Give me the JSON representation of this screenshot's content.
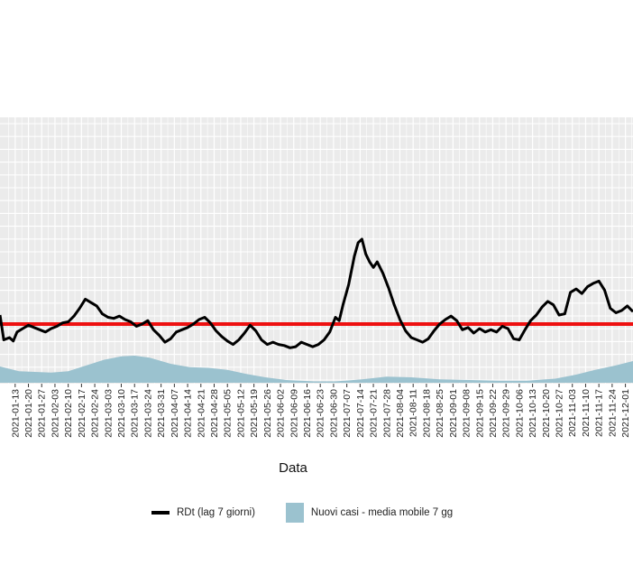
{
  "chart_data": {
    "type": "line",
    "title": "",
    "xlabel": "Data",
    "ylabel": "",
    "x_range": [
      "2021-01-05",
      "2021-12-05"
    ],
    "grid": true,
    "legend_position": "bottom",
    "tick_labels": [
      "2021-01-13",
      "2021-01-20",
      "2021-01-27",
      "2021-02-03",
      "2021-02-10",
      "2021-02-17",
      "2021-02-24",
      "2021-03-03",
      "2021-03-10",
      "2021-03-17",
      "2021-03-24",
      "2021-03-31",
      "2021-04-07",
      "2021-04-14",
      "2021-04-21",
      "2021-04-28",
      "2021-05-05",
      "2021-05-12",
      "2021-05-19",
      "2021-05-26",
      "2021-06-02",
      "2021-06-09",
      "2021-06-16",
      "2021-06-23",
      "2021-06-30",
      "2021-07-07",
      "2021-07-14",
      "2021-07-21",
      "2021-07-28",
      "2021-08-04",
      "2021-08-11",
      "2021-08-18",
      "2021-08-25",
      "2021-09-01",
      "2021-09-08",
      "2021-09-15",
      "2021-09-22",
      "2021-09-29",
      "2021-10-06",
      "2021-10-13",
      "2021-10-20",
      "2021-10-27",
      "2021-11-03",
      "2021-11-10",
      "2021-11-17",
      "2021-11-24",
      "2021-12-01"
    ],
    "threshold": {
      "value": 1.0,
      "color": "#ee1111"
    },
    "series": [
      {
        "name": "RDt (lag 7 giorni)",
        "kind": "line",
        "color": "#000000",
        "points": [
          [
            "2021-01-05",
            1.08
          ],
          [
            "2021-01-07",
            0.86
          ],
          [
            "2021-01-10",
            0.88
          ],
          [
            "2021-01-12",
            0.85
          ],
          [
            "2021-01-14",
            0.93
          ],
          [
            "2021-01-17",
            0.96
          ],
          [
            "2021-01-20",
            0.99
          ],
          [
            "2021-01-23",
            0.97
          ],
          [
            "2021-01-26",
            0.95
          ],
          [
            "2021-01-29",
            0.93
          ],
          [
            "2021-02-01",
            0.96
          ],
          [
            "2021-02-04",
            0.98
          ],
          [
            "2021-02-07",
            1.01
          ],
          [
            "2021-02-10",
            1.02
          ],
          [
            "2021-02-13",
            1.07
          ],
          [
            "2021-02-16",
            1.14
          ],
          [
            "2021-02-19",
            1.22
          ],
          [
            "2021-02-22",
            1.19
          ],
          [
            "2021-02-25",
            1.16
          ],
          [
            "2021-02-28",
            1.09
          ],
          [
            "2021-03-03",
            1.06
          ],
          [
            "2021-03-06",
            1.05
          ],
          [
            "2021-03-09",
            1.07
          ],
          [
            "2021-03-12",
            1.04
          ],
          [
            "2021-03-15",
            1.02
          ],
          [
            "2021-03-18",
            0.98
          ],
          [
            "2021-03-21",
            1.0
          ],
          [
            "2021-03-24",
            1.03
          ],
          [
            "2021-03-27",
            0.95
          ],
          [
            "2021-03-30",
            0.9
          ],
          [
            "2021-04-02",
            0.84
          ],
          [
            "2021-04-05",
            0.87
          ],
          [
            "2021-04-08",
            0.93
          ],
          [
            "2021-04-11",
            0.95
          ],
          [
            "2021-04-14",
            0.97
          ],
          [
            "2021-04-17",
            1.0
          ],
          [
            "2021-04-20",
            1.04
          ],
          [
            "2021-04-23",
            1.06
          ],
          [
            "2021-04-26",
            1.01
          ],
          [
            "2021-04-29",
            0.94
          ],
          [
            "2021-05-02",
            0.89
          ],
          [
            "2021-05-05",
            0.85
          ],
          [
            "2021-05-08",
            0.82
          ],
          [
            "2021-05-11",
            0.86
          ],
          [
            "2021-05-14",
            0.92
          ],
          [
            "2021-05-17",
            0.99
          ],
          [
            "2021-05-20",
            0.94
          ],
          [
            "2021-05-23",
            0.86
          ],
          [
            "2021-05-26",
            0.82
          ],
          [
            "2021-05-29",
            0.84
          ],
          [
            "2021-06-01",
            0.82
          ],
          [
            "2021-06-04",
            0.81
          ],
          [
            "2021-06-07",
            0.79
          ],
          [
            "2021-06-10",
            0.8
          ],
          [
            "2021-06-13",
            0.84
          ],
          [
            "2021-06-16",
            0.82
          ],
          [
            "2021-06-19",
            0.8
          ],
          [
            "2021-06-22",
            0.82
          ],
          [
            "2021-06-25",
            0.86
          ],
          [
            "2021-06-28",
            0.93
          ],
          [
            "2021-07-01",
            1.06
          ],
          [
            "2021-07-03",
            1.03
          ],
          [
            "2021-07-05",
            1.17
          ],
          [
            "2021-07-08",
            1.35
          ],
          [
            "2021-07-11",
            1.6
          ],
          [
            "2021-07-13",
            1.72
          ],
          [
            "2021-07-15",
            1.75
          ],
          [
            "2021-07-17",
            1.62
          ],
          [
            "2021-07-19",
            1.55
          ],
          [
            "2021-07-21",
            1.5
          ],
          [
            "2021-07-23",
            1.55
          ],
          [
            "2021-07-26",
            1.45
          ],
          [
            "2021-07-29",
            1.32
          ],
          [
            "2021-08-01",
            1.17
          ],
          [
            "2021-08-04",
            1.04
          ],
          [
            "2021-08-07",
            0.94
          ],
          [
            "2021-08-10",
            0.88
          ],
          [
            "2021-08-13",
            0.86
          ],
          [
            "2021-08-16",
            0.84
          ],
          [
            "2021-08-19",
            0.87
          ],
          [
            "2021-08-22",
            0.94
          ],
          [
            "2021-08-25",
            1.0
          ],
          [
            "2021-08-28",
            1.04
          ],
          [
            "2021-08-31",
            1.07
          ],
          [
            "2021-09-03",
            1.03
          ],
          [
            "2021-09-06",
            0.95
          ],
          [
            "2021-09-09",
            0.97
          ],
          [
            "2021-09-12",
            0.92
          ],
          [
            "2021-09-15",
            0.96
          ],
          [
            "2021-09-18",
            0.93
          ],
          [
            "2021-09-21",
            0.95
          ],
          [
            "2021-09-24",
            0.93
          ],
          [
            "2021-09-27",
            0.98
          ],
          [
            "2021-09-30",
            0.96
          ],
          [
            "2021-10-03",
            0.87
          ],
          [
            "2021-10-06",
            0.86
          ],
          [
            "2021-10-09",
            0.95
          ],
          [
            "2021-10-12",
            1.03
          ],
          [
            "2021-10-15",
            1.08
          ],
          [
            "2021-10-18",
            1.15
          ],
          [
            "2021-10-21",
            1.2
          ],
          [
            "2021-10-24",
            1.17
          ],
          [
            "2021-10-27",
            1.08
          ],
          [
            "2021-10-30",
            1.09
          ],
          [
            "2021-11-02",
            1.28
          ],
          [
            "2021-11-05",
            1.31
          ],
          [
            "2021-11-08",
            1.27
          ],
          [
            "2021-11-11",
            1.33
          ],
          [
            "2021-11-14",
            1.36
          ],
          [
            "2021-11-17",
            1.38
          ],
          [
            "2021-11-20",
            1.3
          ],
          [
            "2021-11-23",
            1.14
          ],
          [
            "2021-11-26",
            1.1
          ],
          [
            "2021-11-29",
            1.12
          ],
          [
            "2021-12-02",
            1.16
          ],
          [
            "2021-12-05",
            1.11
          ]
        ]
      },
      {
        "name": "Nuovi casi - media mobile 7 gg",
        "kind": "area",
        "color": "#9bc2cf",
        "points": [
          [
            "2021-01-05",
            0.24
          ],
          [
            "2021-01-15",
            0.17
          ],
          [
            "2021-02-01",
            0.15
          ],
          [
            "2021-02-10",
            0.17
          ],
          [
            "2021-02-20",
            0.26
          ],
          [
            "2021-03-01",
            0.34
          ],
          [
            "2021-03-10",
            0.39
          ],
          [
            "2021-03-17",
            0.4
          ],
          [
            "2021-03-25",
            0.37
          ],
          [
            "2021-04-05",
            0.28
          ],
          [
            "2021-04-15",
            0.23
          ],
          [
            "2021-04-25",
            0.22
          ],
          [
            "2021-05-05",
            0.19
          ],
          [
            "2021-05-15",
            0.13
          ],
          [
            "2021-05-25",
            0.08
          ],
          [
            "2021-06-05",
            0.04
          ],
          [
            "2021-06-20",
            0.02
          ],
          [
            "2021-07-01",
            0.02
          ],
          [
            "2021-07-15",
            0.05
          ],
          [
            "2021-07-28",
            0.09
          ],
          [
            "2021-08-10",
            0.08
          ],
          [
            "2021-08-25",
            0.05
          ],
          [
            "2021-09-10",
            0.04
          ],
          [
            "2021-09-25",
            0.03
          ],
          [
            "2021-10-10",
            0.03
          ],
          [
            "2021-10-25",
            0.06
          ],
          [
            "2021-11-05",
            0.12
          ],
          [
            "2021-11-15",
            0.19
          ],
          [
            "2021-11-25",
            0.25
          ],
          [
            "2021-12-05",
            0.32
          ]
        ]
      }
    ]
  },
  "legend": {
    "line_label": "RDt (lag 7 giorni)",
    "area_label": "Nuovi casi - media mobile 7 gg"
  }
}
